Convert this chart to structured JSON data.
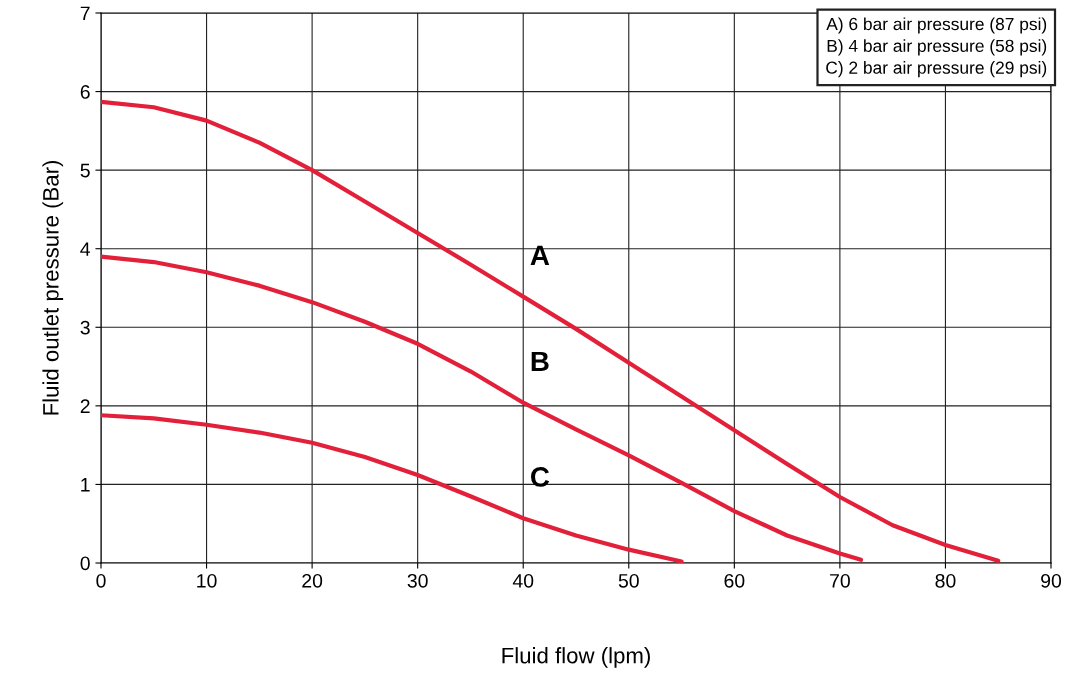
{
  "chart_data": {
    "type": "line",
    "xlabel": "Fluid flow (lpm)",
    "ylabel": "Fluid outlet pressure (Bar)",
    "series": [
      {
        "name": "A",
        "color": "#e3203a",
        "x": [
          0,
          5,
          10,
          15,
          20,
          25,
          30,
          35,
          40,
          45,
          50,
          55,
          60,
          65,
          70,
          75,
          80,
          85
        ],
        "values": [
          5.87,
          5.8,
          5.63,
          5.35,
          5.0,
          4.6,
          4.2,
          3.8,
          3.39,
          2.98,
          2.55,
          2.12,
          1.69,
          1.26,
          0.84,
          0.48,
          0.23,
          0.03
        ]
      },
      {
        "name": "B",
        "color": "#e3203a",
        "x": [
          0,
          5,
          10,
          15,
          20,
          25,
          30,
          35,
          40,
          45,
          50,
          55,
          60,
          65,
          70,
          72
        ],
        "values": [
          3.9,
          3.83,
          3.7,
          3.53,
          3.32,
          3.07,
          2.79,
          2.44,
          2.04,
          1.7,
          1.37,
          1.02,
          0.66,
          0.35,
          0.12,
          0.04
        ]
      },
      {
        "name": "C",
        "color": "#e3203a",
        "x": [
          0,
          5,
          10,
          15,
          20,
          25,
          30,
          35,
          40,
          45,
          50,
          55
        ],
        "values": [
          1.88,
          1.84,
          1.76,
          1.66,
          1.53,
          1.35,
          1.12,
          0.85,
          0.57,
          0.35,
          0.17,
          0.02
        ]
      }
    ],
    "xlim": [
      0,
      90
    ],
    "xticks": [
      0,
      10,
      20,
      30,
      40,
      50,
      60,
      70,
      80,
      90
    ],
    "ylim": [
      0,
      7
    ],
    "yticks": [
      0,
      1,
      2,
      3,
      4,
      5,
      6,
      7
    ],
    "grid": true,
    "line_style": "solid",
    "marker": "none",
    "annotations": [
      "A) 6 bar air pressure (87 psi)\nB) 4 bar air pressure (58 psi)\nC) 2 bar air pressure (29 psi)"
    ]
  }
}
